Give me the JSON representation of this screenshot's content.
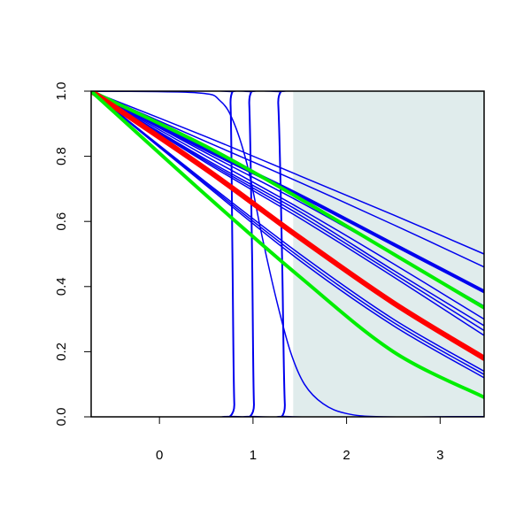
{
  "chart_data": {
    "type": "line",
    "title": "",
    "xlabel": "",
    "ylabel": "",
    "xlim": [
      -0.73,
      3.47
    ],
    "ylim": [
      0.0,
      1.0
    ],
    "x_ticks": [
      0,
      1,
      2,
      3
    ],
    "y_ticks": [
      0.0,
      0.2,
      0.4,
      0.6,
      0.8,
      1.0
    ],
    "x_tick_labels": [
      "0",
      "1",
      "2",
      "3"
    ],
    "y_tick_labels": [
      "0.0",
      "0.2",
      "0.4",
      "0.6",
      "0.8",
      "1.0"
    ],
    "grid": false,
    "shaded_region": {
      "x_from": 1.43,
      "x_to": 3.47,
      "color": "#e0ecec"
    },
    "colors": {
      "red": "#ff0000",
      "green": "#00ee00",
      "blue": "#0000ee"
    },
    "series": [
      {
        "group": "blue-smooth",
        "color": "#0000ee",
        "width": 1.5,
        "points": [
          [
            -0.73,
            1.0
          ],
          [
            0.5,
            0.86
          ],
          [
            1.5,
            0.74
          ],
          [
            2.5,
            0.62
          ],
          [
            3.47,
            0.5
          ]
        ]
      },
      {
        "group": "blue-smooth",
        "color": "#0000ee",
        "width": 1.5,
        "points": [
          [
            -0.73,
            1.0
          ],
          [
            0.5,
            0.845
          ],
          [
            1.5,
            0.72
          ],
          [
            2.5,
            0.59
          ],
          [
            3.47,
            0.46
          ]
        ]
      },
      {
        "group": "blue-smooth",
        "color": "#0000ee",
        "width": 4,
        "points": [
          [
            -0.73,
            1.0
          ],
          [
            0.5,
            0.82
          ],
          [
            1.5,
            0.68
          ],
          [
            2.5,
            0.53
          ],
          [
            3.47,
            0.385
          ]
        ]
      },
      {
        "group": "blue-smooth",
        "color": "#0000ee",
        "width": 1.5,
        "points": [
          [
            -0.73,
            1.0
          ],
          [
            0.5,
            0.81
          ],
          [
            1.5,
            0.66
          ],
          [
            2.5,
            0.5
          ],
          [
            3.47,
            0.34
          ]
        ]
      },
      {
        "group": "blue-smooth",
        "color": "#0000ee",
        "width": 1.5,
        "points": [
          [
            -0.73,
            1.0
          ],
          [
            0.5,
            0.8
          ],
          [
            1.5,
            0.64
          ],
          [
            2.5,
            0.47
          ],
          [
            3.47,
            0.3
          ]
        ]
      },
      {
        "group": "blue-smooth",
        "color": "#0000ee",
        "width": 1.5,
        "points": [
          [
            -0.73,
            1.0
          ],
          [
            0.5,
            0.79
          ],
          [
            1.5,
            0.63
          ],
          [
            2.5,
            0.45
          ],
          [
            3.47,
            0.28
          ]
        ]
      },
      {
        "group": "blue-smooth",
        "color": "#0000ee",
        "width": 1.5,
        "points": [
          [
            -0.73,
            1.0
          ],
          [
            0.5,
            0.785
          ],
          [
            1.5,
            0.62
          ],
          [
            2.5,
            0.44
          ],
          [
            3.47,
            0.265
          ]
        ]
      },
      {
        "group": "blue-smooth",
        "color": "#0000ee",
        "width": 1.5,
        "points": [
          [
            -0.73,
            1.0
          ],
          [
            0.5,
            0.78
          ],
          [
            1.5,
            0.61
          ],
          [
            2.5,
            0.43
          ],
          [
            3.47,
            0.25
          ]
        ]
      },
      {
        "group": "blue-smooth",
        "color": "#0000ee",
        "width": 1.5,
        "points": [
          [
            -0.73,
            1.0
          ],
          [
            0.5,
            0.72
          ],
          [
            1.5,
            0.5
          ],
          [
            2.5,
            0.3
          ],
          [
            3.47,
            0.14
          ]
        ]
      },
      {
        "group": "blue-smooth",
        "color": "#0000ee",
        "width": 1.5,
        "points": [
          [
            -0.73,
            1.0
          ],
          [
            0.5,
            0.715
          ],
          [
            1.5,
            0.49
          ],
          [
            2.5,
            0.29
          ],
          [
            3.47,
            0.13
          ]
        ]
      },
      {
        "group": "blue-smooth",
        "color": "#0000ee",
        "width": 1.5,
        "points": [
          [
            -0.73,
            1.0
          ],
          [
            0.5,
            0.71
          ],
          [
            1.5,
            0.48
          ],
          [
            2.5,
            0.28
          ],
          [
            3.47,
            0.12
          ]
        ]
      },
      {
        "group": "blue-step",
        "color": "#0000ee",
        "width": 2,
        "points": [
          [
            -0.73,
            1.0
          ],
          [
            0.72,
            1.0
          ],
          [
            0.76,
            0.96
          ],
          [
            0.78,
            0.5
          ],
          [
            0.8,
            0.04
          ],
          [
            0.84,
            0.0
          ],
          [
            3.47,
            0.0
          ]
        ]
      },
      {
        "group": "blue-step",
        "color": "#0000ee",
        "width": 2,
        "points": [
          [
            -0.73,
            1.0
          ],
          [
            0.92,
            1.0
          ],
          [
            0.96,
            0.96
          ],
          [
            0.99,
            0.5
          ],
          [
            1.01,
            0.04
          ],
          [
            1.05,
            0.0
          ],
          [
            3.47,
            0.0
          ]
        ]
      },
      {
        "group": "blue-step",
        "color": "#0000ee",
        "width": 2,
        "points": [
          [
            -0.73,
            1.0
          ],
          [
            1.22,
            1.0
          ],
          [
            1.27,
            0.96
          ],
          [
            1.31,
            0.5
          ],
          [
            1.34,
            0.04
          ],
          [
            1.39,
            0.0
          ],
          [
            3.47,
            0.0
          ]
        ]
      },
      {
        "group": "blue-step",
        "color": "#0000ee",
        "width": 1.5,
        "points": [
          [
            -0.73,
            1.0
          ],
          [
            0.4,
            0.995
          ],
          [
            0.65,
            0.97
          ],
          [
            0.8,
            0.9
          ],
          [
            0.95,
            0.76
          ],
          [
            1.1,
            0.55
          ],
          [
            1.25,
            0.36
          ],
          [
            1.4,
            0.2
          ],
          [
            1.55,
            0.1
          ],
          [
            1.75,
            0.04
          ],
          [
            2.0,
            0.01
          ],
          [
            2.4,
            0.0
          ],
          [
            3.47,
            0.0
          ]
        ]
      },
      {
        "group": "green",
        "color": "#00ee00",
        "width": 4,
        "points": [
          [
            -0.73,
            1.0
          ],
          [
            0.5,
            0.83
          ],
          [
            1.5,
            0.67
          ],
          [
            2.5,
            0.5
          ],
          [
            3.47,
            0.335
          ]
        ]
      },
      {
        "group": "red",
        "color": "#ff0000",
        "width": 6,
        "points": [
          [
            -0.73,
            1.0
          ],
          [
            0.5,
            0.76
          ],
          [
            1.5,
            0.55
          ],
          [
            2.5,
            0.35
          ],
          [
            3.47,
            0.18
          ]
        ]
      },
      {
        "group": "green",
        "color": "#00ee00",
        "width": 4,
        "points": [
          [
            -0.73,
            1.0
          ],
          [
            0.5,
            0.68
          ],
          [
            1.5,
            0.43
          ],
          [
            2.5,
            0.2
          ],
          [
            3.47,
            0.06
          ]
        ]
      }
    ]
  }
}
